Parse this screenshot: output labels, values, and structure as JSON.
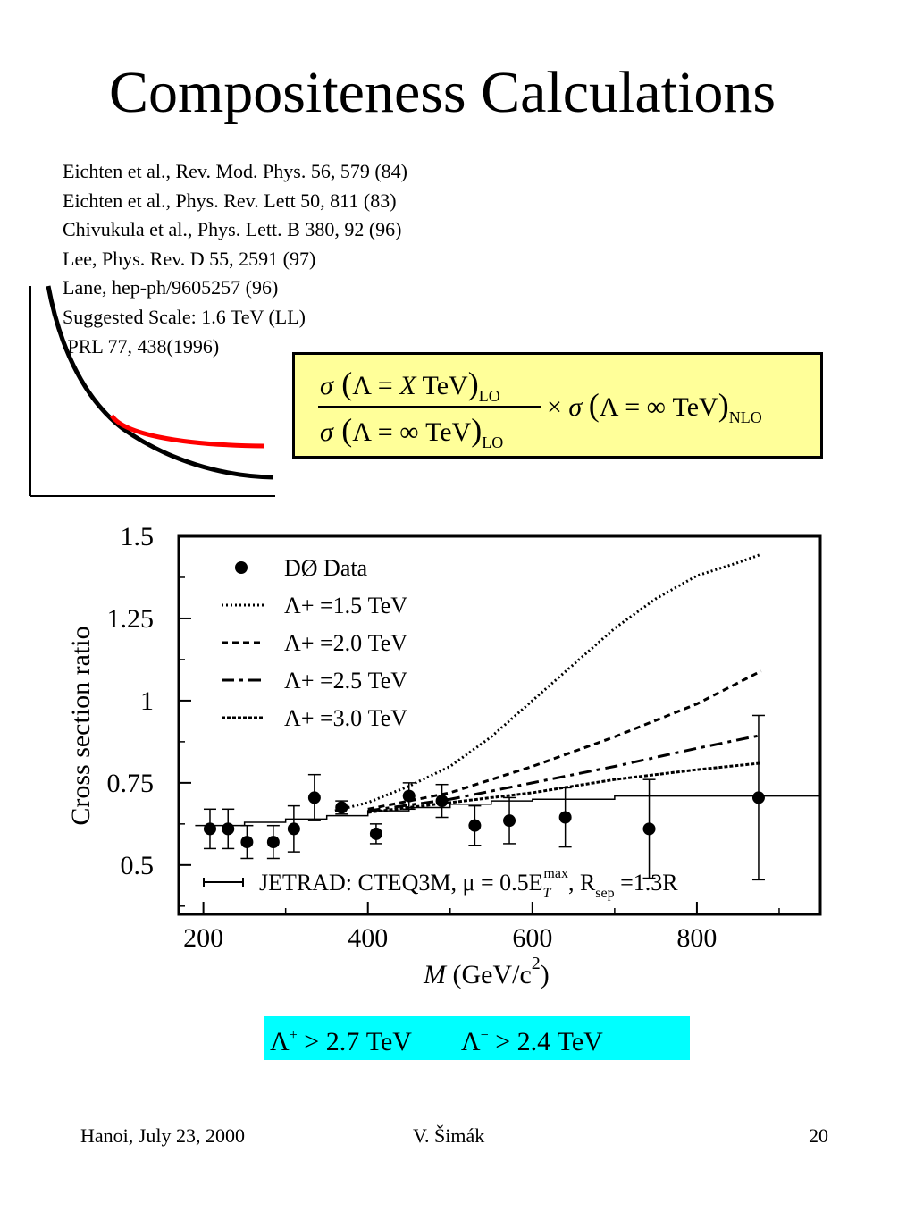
{
  "slide": {
    "title": "Compositeness Calculations",
    "references": [
      "Eichten et al., Rev. Mod. Phys. 56, 579 (84)",
      "Eichten et al., Phys. Rev. Lett 50, 811 (83)",
      "Chivukula et al., Phys. Lett. B 380, 92 (96)",
      "Lee, Phys. Rev. D 55, 2591 (97)",
      "Lane, hep-ph/9605257 (96)",
      "Suggested Scale: 1.6 TeV (LL)",
      " PRL 77, 438(1996)"
    ],
    "colors": {
      "formula_box_fill": "#ffff99",
      "result_box_fill": "#00ffff",
      "sketch_red": "#ff0000"
    },
    "formula": {
      "num_sigma": "σ",
      "num_lambda": "Λ = ",
      "num_x": "X",
      "num_tev": " TeV",
      "num_sub": "LO",
      "den_sigma": "σ",
      "den_lambda": "Λ = ∞ TeV",
      "den_sub": "LO",
      "times": "×",
      "right_sigma": "σ",
      "right_lambda": "Λ = ∞ TeV",
      "right_sub": "NLO"
    },
    "result": {
      "lam_plus": "Λ",
      "sup_plus": "+",
      "plus_text": " > 2.7 TeV",
      "lam_minus": "Λ",
      "sup_minus": "−",
      "minus_text": " > 2.4 TeV"
    },
    "footer": {
      "left": "Hanoi, July 23, 2000",
      "center": "V. Šimák",
      "right": "20"
    }
  },
  "chart_data": {
    "type": "scatter",
    "ylabel": "Cross section ratio",
    "xlabel_m": "M",
    "xlabel_unit": " (GeV/c",
    "xlabel_sup": "2",
    "xlabel_close": ")",
    "xlim": [
      170,
      950
    ],
    "ylim": [
      0.35,
      1.5
    ],
    "xticks": [
      "200",
      "400",
      "600",
      "800"
    ],
    "yticks": [
      "1.5",
      "1.25",
      "1",
      "0.75",
      "0.5"
    ],
    "legend": [
      {
        "label": "DØ Data",
        "style": "marker"
      },
      {
        "label": "Λ+ =1.5 TeV",
        "style": "dotted"
      },
      {
        "label": "Λ+ =2.0 TeV",
        "style": "short-dash"
      },
      {
        "label": "Λ+ =2.5 TeV",
        "style": "long-dash"
      },
      {
        "label": "Λ+ =3.0 TeV",
        "style": "dense-dash"
      }
    ],
    "bottom_legend": "JETRAD: CTEQ3M,  μ = 0.5E",
    "bottom_legend_sub": "T",
    "bottom_legend_sup": "max",
    "bottom_legend_rsep": ",  R",
    "bottom_legend_rsep_sub": "sep",
    "bottom_legend_tail": " =1.3R",
    "data_points": [
      {
        "x": 208,
        "y": 0.61,
        "err": 0.06
      },
      {
        "x": 230,
        "y": 0.61,
        "err": 0.06
      },
      {
        "x": 253,
        "y": 0.57,
        "err": 0.05
      },
      {
        "x": 285,
        "y": 0.57,
        "err": 0.05
      },
      {
        "x": 310,
        "y": 0.61,
        "err": 0.07
      },
      {
        "x": 335,
        "y": 0.705,
        "err": 0.07
      },
      {
        "x": 368,
        "y": 0.675,
        "err": 0.02
      },
      {
        "x": 410,
        "y": 0.595,
        "err": 0.03
      },
      {
        "x": 450,
        "y": 0.71,
        "err": 0.04
      },
      {
        "x": 490,
        "y": 0.695,
        "err": 0.05
      },
      {
        "x": 530,
        "y": 0.62,
        "err": 0.06
      },
      {
        "x": 572,
        "y": 0.635,
        "err": 0.07
      },
      {
        "x": 640,
        "y": 0.645,
        "err": 0.09
      },
      {
        "x": 742,
        "y": 0.61,
        "err": 0.15
      },
      {
        "x": 875,
        "y": 0.705,
        "err": 0.25
      }
    ],
    "series": [
      {
        "name": "Λ+ =1.5 TeV",
        "style": "dotted",
        "x": [
          360,
          400,
          450,
          500,
          550,
          600,
          650,
          700,
          750,
          800,
          850,
          878
        ],
        "y": [
          0.665,
          0.69,
          0.74,
          0.8,
          0.89,
          1.0,
          1.11,
          1.22,
          1.31,
          1.38,
          1.42,
          1.445
        ]
      },
      {
        "name": "Λ+ =2.0 TeV",
        "style": "short-dash",
        "x": [
          400,
          500,
          600,
          700,
          800,
          878
        ],
        "y": [
          0.67,
          0.72,
          0.8,
          0.89,
          0.99,
          1.09
        ]
      },
      {
        "name": "Λ+ =2.5 TeV",
        "style": "long-dash",
        "x": [
          400,
          500,
          600,
          700,
          800,
          878
        ],
        "y": [
          0.665,
          0.7,
          0.75,
          0.8,
          0.855,
          0.895
        ]
      },
      {
        "name": "Λ+ =3.0 TeV",
        "style": "dense-dash",
        "x": [
          400,
          500,
          600,
          700,
          800,
          878
        ],
        "y": [
          0.66,
          0.69,
          0.72,
          0.76,
          0.79,
          0.81
        ]
      },
      {
        "name": "JETRAD",
        "style": "solid-step",
        "x": [
          190,
          250,
          300,
          350,
          400,
          450,
          500,
          550,
          600,
          700,
          800,
          950
        ],
        "y": [
          0.62,
          0.63,
          0.64,
          0.65,
          0.665,
          0.675,
          0.685,
          0.695,
          0.7,
          0.71,
          0.71,
          0.71
        ]
      }
    ]
  }
}
